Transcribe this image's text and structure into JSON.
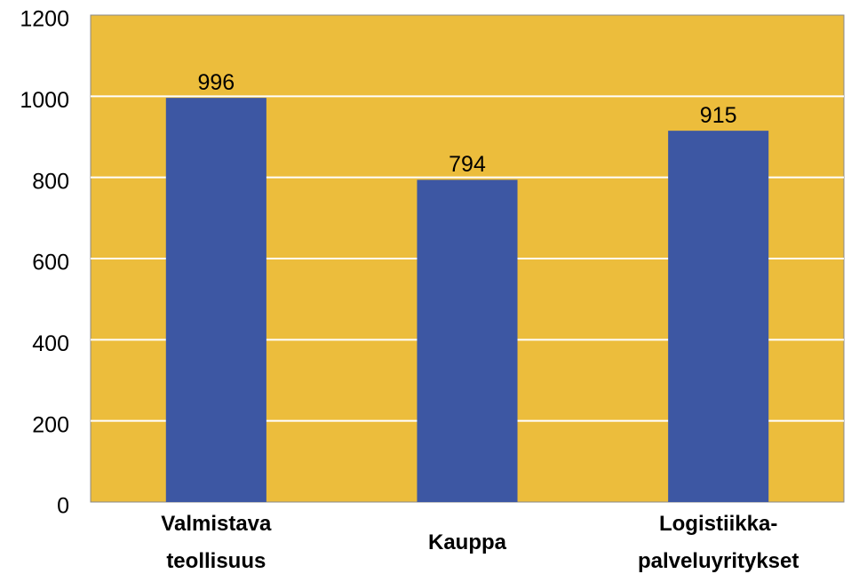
{
  "chart_data": {
    "type": "bar",
    "categories": [
      "Valmistava teollisuus",
      "Kauppa",
      "Logistiikka-palveluyritykset"
    ],
    "values": [
      996,
      794,
      915
    ],
    "color": "#3d57a3",
    "background": "#ecbd3c",
    "ylim": [
      0,
      1200
    ],
    "yticks": [
      0,
      200,
      400,
      600,
      800,
      1000,
      1200
    ],
    "grid": true
  }
}
